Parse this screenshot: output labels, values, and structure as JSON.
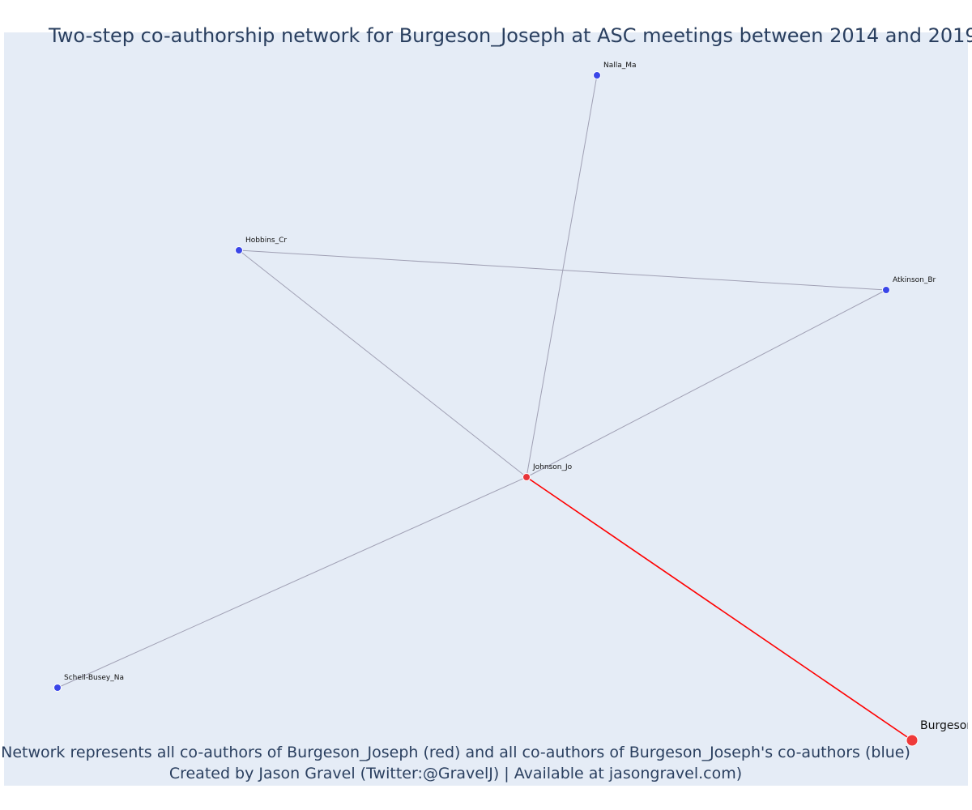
{
  "title": "Two-step co-authorship network for Burgeson_Joseph at ASC meetings between 2014 and 2019",
  "caption_line1": "Network represents all co-authors of Burgeson_Joseph (red) and all co-authors of Burgeson_Joseph's co-authors (blue)",
  "caption_line2": "Created by Jason Gravel (Twitter:@GravelJ) | Available at jasongravel.com)",
  "colors": {
    "background": "#e5ecf6",
    "red": "#ff0000",
    "blue": "#0000ff",
    "edge_grey": "#a0a0b4",
    "text": "#2a3f5f"
  },
  "nodes": [
    {
      "id": "Nalla_Ma",
      "label": "Nalla_Ma",
      "group": "blue"
    },
    {
      "id": "Hobbins_Cr",
      "label": "Hobbins_Cr",
      "group": "blue"
    },
    {
      "id": "Atkinson_Br",
      "label": "Atkinson_Br",
      "group": "blue"
    },
    {
      "id": "Johnson_Jo",
      "label": "Johnson_Jo",
      "group": "red"
    },
    {
      "id": "Schell-Busey_Na",
      "label": "Schell-Busey_Na",
      "group": "blue"
    },
    {
      "id": "Burgeson_Joseph",
      "label": "Burgeson_Joseph",
      "group": "ego"
    }
  ],
  "edges": [
    {
      "source": "Hobbins_Cr",
      "target": "Atkinson_Br",
      "highlight": false
    },
    {
      "source": "Johnson_Jo",
      "target": "Nalla_Ma",
      "highlight": false
    },
    {
      "source": "Johnson_Jo",
      "target": "Hobbins_Cr",
      "highlight": false
    },
    {
      "source": "Johnson_Jo",
      "target": "Atkinson_Br",
      "highlight": false
    },
    {
      "source": "Johnson_Jo",
      "target": "Schell-Busey_Na",
      "highlight": false
    },
    {
      "source": "Johnson_Jo",
      "target": "Burgeson_Joseph",
      "highlight": true
    }
  ]
}
